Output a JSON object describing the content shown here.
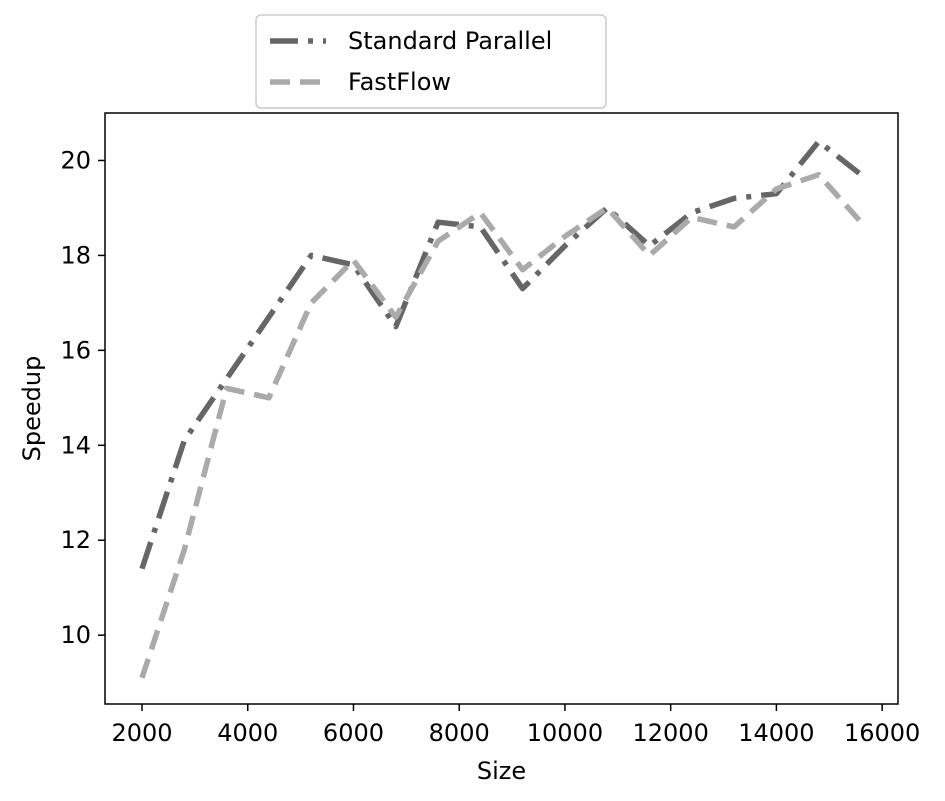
{
  "chart_data": {
    "type": "line",
    "title": "",
    "xlabel": "Size",
    "ylabel": "Speedup",
    "xlim": [
      1300,
      16300
    ],
    "ylim": [
      8.55,
      21.0
    ],
    "xticks": [
      2000,
      4000,
      6000,
      8000,
      10000,
      12000,
      14000,
      16000
    ],
    "yticks": [
      10,
      12,
      14,
      16,
      18,
      20
    ],
    "grid": false,
    "legend": {
      "placement": "upper-left, above the axes"
    },
    "x": [
      2000,
      2800,
      3600,
      4400,
      5200,
      6000,
      6800,
      7600,
      8400,
      9200,
      10000,
      10800,
      11600,
      12400,
      13200,
      14000,
      14800,
      15600
    ],
    "series": [
      {
        "name": "Standard Parallel",
        "style": "dashdot",
        "color": "#666666",
        "values": [
          11.4,
          14.1,
          15.4,
          16.7,
          18.0,
          17.8,
          16.5,
          18.7,
          18.6,
          17.3,
          18.2,
          19.0,
          18.2,
          18.9,
          19.2,
          19.3,
          20.4,
          19.7
        ]
      },
      {
        "name": "FastFlow",
        "style": "dashed",
        "color": "#aaaaaa",
        "values": [
          9.1,
          11.8,
          15.2,
          15.0,
          17.0,
          17.9,
          16.7,
          18.3,
          18.9,
          17.7,
          18.4,
          19.0,
          18.0,
          18.8,
          18.6,
          19.4,
          19.7,
          18.7
        ]
      }
    ]
  }
}
